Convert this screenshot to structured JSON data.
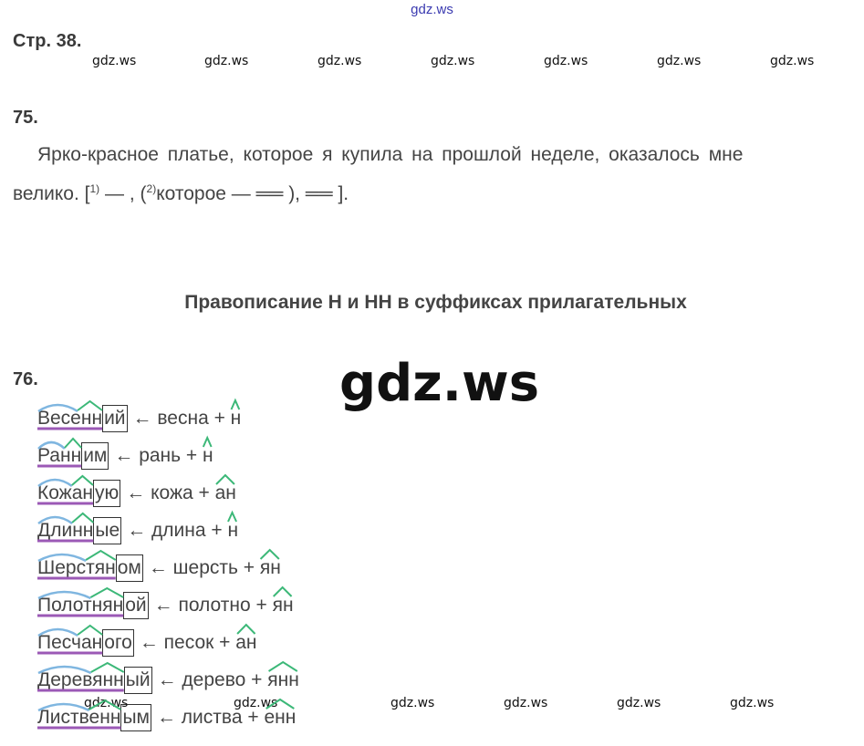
{
  "watermark_top": "gdz.ws",
  "watermark_big": "gdz.ws",
  "watermark_small": "gdz.ws",
  "page_label": "Стр. 38.",
  "task75": {
    "number": "75.",
    "line1": "Ярко-красное платье, которое я купила на прошлой неделе, оказалось мне",
    "line2_start": "велико. [",
    "sup1": "1)",
    "line2_mid": " — , (",
    "sup2": "2)",
    "line2_end": "которое —  ══ ), ══ ]."
  },
  "section_title": "Правописание Н и НН в суффиксах прилагательных",
  "task76": {
    "number": "76.",
    "rows": [
      {
        "stem": "Весенн",
        "ending": "ий",
        "derivation": "← весна + н"
      },
      {
        "stem": "Ранн",
        "ending": "им",
        "derivation": "← рань + н"
      },
      {
        "stem": "Кожан",
        "ending": "ую",
        "derivation": "← кожа + ан"
      },
      {
        "stem": "Длинн",
        "ending": "ые",
        "derivation": "← длина + н"
      },
      {
        "stem": "Шерстян",
        "ending": "ом",
        "derivation": "← шерсть + ян"
      },
      {
        "stem": "Полотнян",
        "ending": "ой",
        "derivation": "← полотно + ян"
      },
      {
        "stem": "Песчан",
        "ending": "ого",
        "derivation": "← песок + ан"
      },
      {
        "stem": "Деревянн",
        "ending": "ый",
        "derivation": "← дерево + янн"
      },
      {
        "stem": "Лиственн",
        "ending": "ым",
        "derivation": "← листва + енн"
      }
    ]
  },
  "colors": {
    "root_arc": "#7fb6e0",
    "suffix_mark": "#3cb878",
    "stem_line": "#9b59b6",
    "frame": "#333333"
  }
}
